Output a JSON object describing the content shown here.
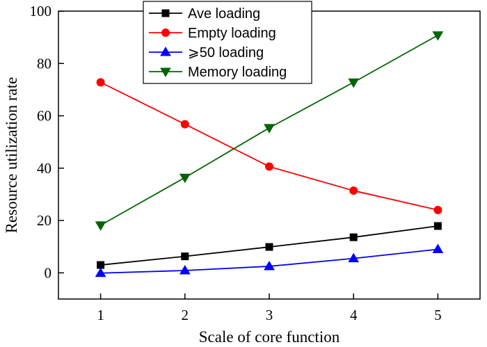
{
  "chart_data": {
    "type": "line",
    "xlabel": "Scale of core function",
    "ylabel": "Resource utilization rate",
    "x": [
      1,
      2,
      3,
      4,
      5
    ],
    "xlim": [
      0.5,
      5.5
    ],
    "ylim": [
      -10,
      100
    ],
    "xticks": [
      1,
      2,
      3,
      4,
      5
    ],
    "yticks": [
      0,
      20,
      40,
      60,
      80,
      100
    ],
    "grid": false,
    "legend_position": "top-center",
    "series": [
      {
        "name": "Ave loading",
        "values": [
          3.0,
          6.3,
          9.9,
          13.6,
          17.9
        ],
        "color": "#000000",
        "marker": "square"
      },
      {
        "name": "Empty loading",
        "values": [
          72.8,
          56.8,
          40.6,
          31.4,
          24.0
        ],
        "color": "#ff0000",
        "marker": "circle"
      },
      {
        "name": "⩾50 loading",
        "values": [
          -0.1,
          0.9,
          2.5,
          5.5,
          9.0
        ],
        "color": "#0000ff",
        "marker": "triangle-up"
      },
      {
        "name": "Memory loading",
        "values": [
          18.2,
          36.4,
          55.4,
          72.8,
          90.8
        ],
        "color": "#006400",
        "marker": "triangle-down"
      }
    ]
  }
}
